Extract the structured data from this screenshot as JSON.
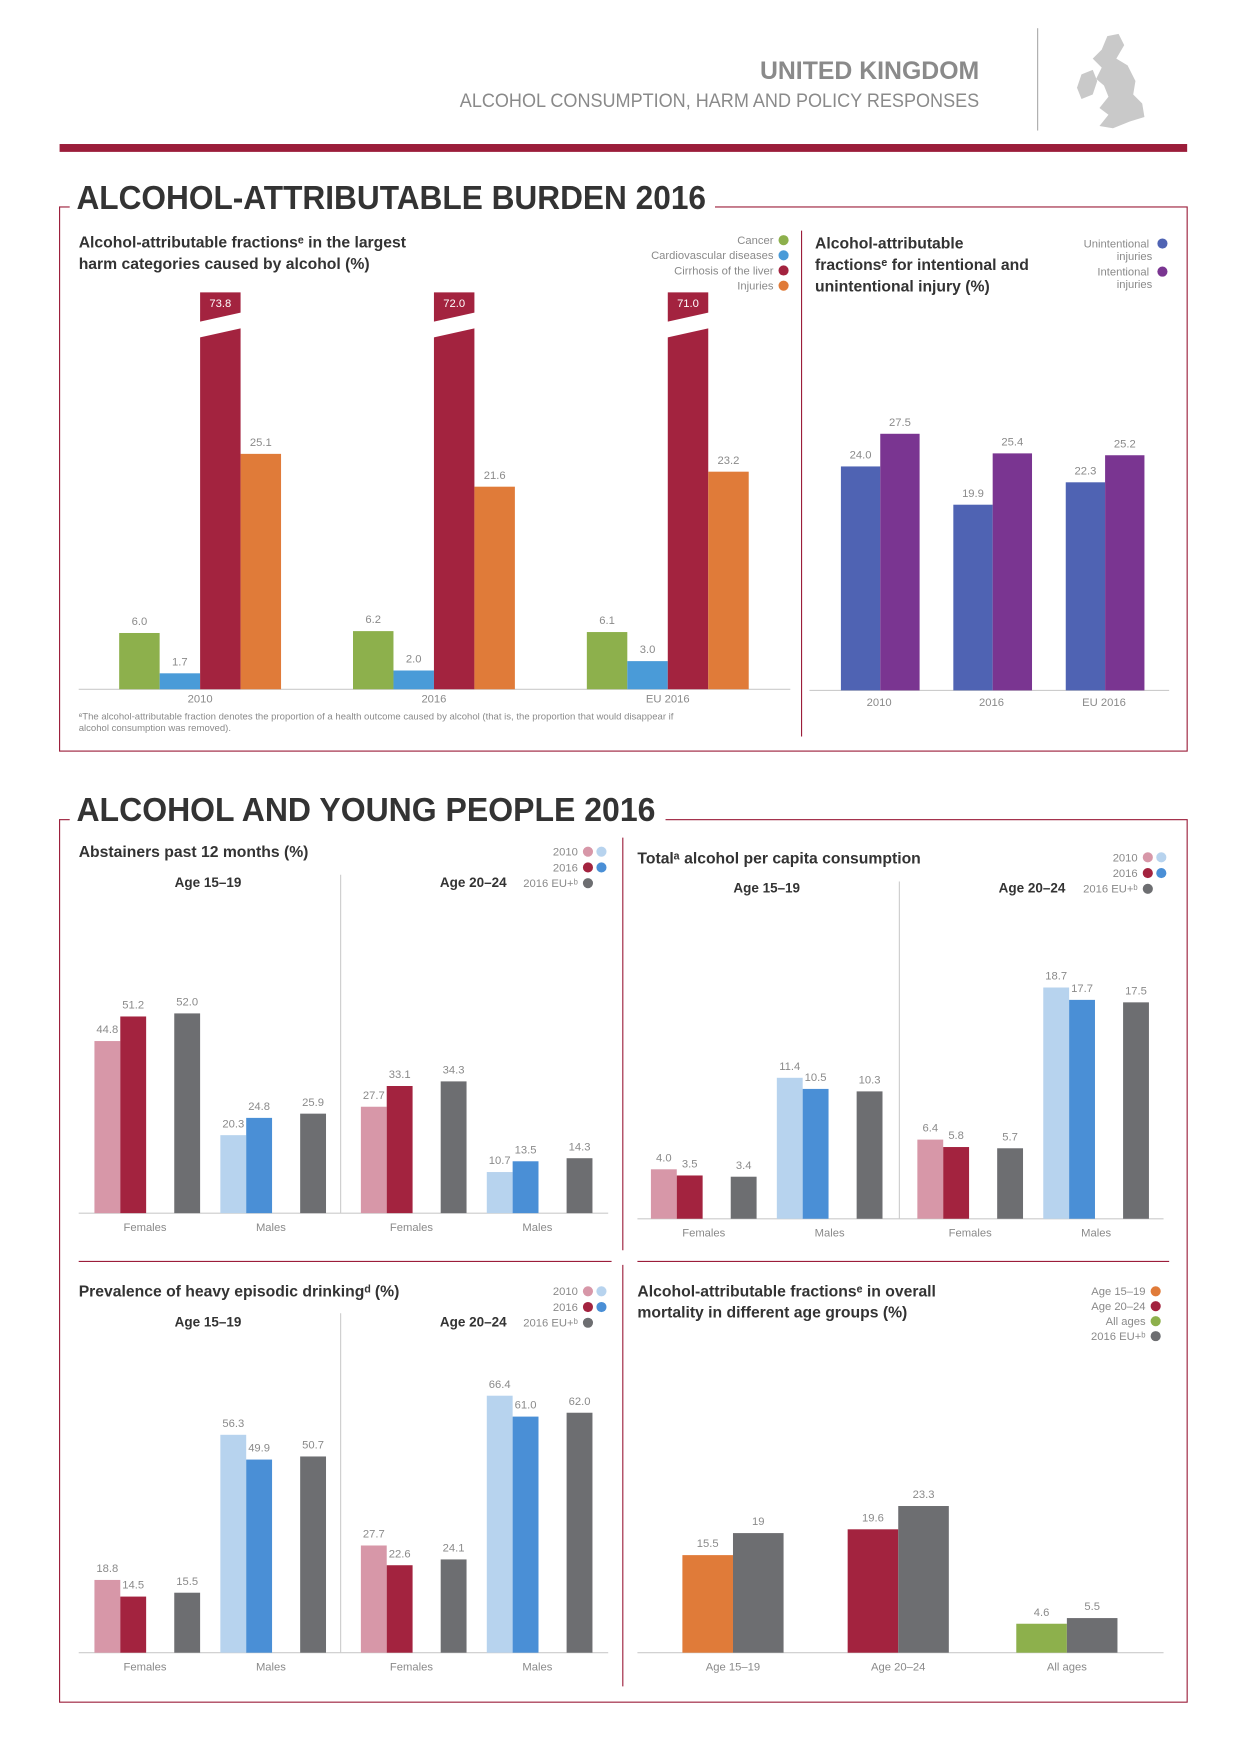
{
  "header": {
    "title": "UNITED KINGDOM",
    "subtitle": "ALCOHOL CONSUMPTION, HARM AND POLICY RESPONSES"
  },
  "sections": [
    {
      "title": "ALCOHOL-ATTRIBUTABLE BURDEN 2016"
    },
    {
      "title": "ALCOHOL AND YOUNG PEOPLE 2016"
    }
  ],
  "chart_data": [
    {
      "type": "bar",
      "title": "Alcohol-attributable fractionsᵉ in the largest harm categories caused by alcohol (%)",
      "categories": [
        "2010",
        "2016",
        "EU 2016"
      ],
      "ylim": [
        0,
        38
      ],
      "series": [
        {
          "name": "Cancer",
          "color": "#8db04c",
          "values": [
            6.0,
            6.2,
            6.1
          ],
          "value_labels": [
            "6.0",
            "6.2",
            "6.1"
          ]
        },
        {
          "name": "Cardiovascular diseases",
          "color": "#4a9bd8",
          "values": [
            1.7,
            2.0,
            3.0
          ],
          "value_labels": [
            "1.7",
            "2.0",
            "3.0"
          ]
        },
        {
          "name": "Cirrhosis of the liver",
          "color": "#a3233f",
          "values": [
            73.8,
            72.0,
            71.0
          ],
          "value_labels": [
            "73.8",
            "72.0",
            "71.0"
          ]
        },
        {
          "name": "Injuries",
          "color": "#e07b39",
          "values": [
            25.1,
            21.6,
            23.2
          ],
          "value_labels": [
            "25.1",
            "21.6",
            "23.2"
          ]
        }
      ],
      "note": "ᵉThe alcohol-attributable fraction denotes the proportion of a health outcome caused by alcohol (that is, the proportion that would disappear if alcohol consumption was removed)."
    },
    {
      "type": "bar",
      "title": "Alcohol-attributable fractionsᵉ for intentional and unintentional injury (%)",
      "categories": [
        "2010",
        "2016",
        "EU 2016"
      ],
      "ylim": [
        0,
        30
      ],
      "series": [
        {
          "name": "Unintentional injuries",
          "color": "#4f63b3",
          "values": [
            24.0,
            19.9,
            22.3
          ],
          "value_labels": [
            "24.0",
            "19.9",
            "22.3"
          ]
        },
        {
          "name": "Intentional injuries",
          "color": "#7a3591",
          "values": [
            27.5,
            25.4,
            25.2
          ],
          "value_labels": [
            "27.5",
            "25.4",
            "25.2"
          ]
        }
      ]
    },
    {
      "type": "bar",
      "title": "Abstainers past 12 months (%)",
      "groups": [
        "Age 15–19",
        "Age 20–24"
      ],
      "categories": [
        "Females",
        "Males",
        "Females",
        "Males"
      ],
      "ylim": [
        0,
        60
      ],
      "series": [
        {
          "name": "2010",
          "colors": [
            "#d797a8",
            "#b7d3ee",
            "#d797a8",
            "#b7d3ee"
          ],
          "values": [
            44.8,
            20.3,
            27.7,
            10.7
          ]
        },
        {
          "name": "2016",
          "colors": [
            "#a3233f",
            "#4a8fd6",
            "#a3233f",
            "#4a8fd6"
          ],
          "values": [
            51.2,
            24.8,
            33.1,
            13.5
          ]
        },
        {
          "name": "2016 EU+ᵇ",
          "color": "#6d6e71",
          "values": [
            52.0,
            25.9,
            34.3,
            14.3
          ],
          "value_labels": [
            "52.0",
            "25.9",
            "34.3",
            "14.3"
          ]
        }
      ]
    },
    {
      "type": "bar",
      "title": "Totalᵃ alcohol per capita consumption",
      "groups": [
        "Age 15–19",
        "Age 20–24"
      ],
      "categories": [
        "Females",
        "Males",
        "Females",
        "Males"
      ],
      "ylim": [
        0,
        20
      ],
      "series": [
        {
          "name": "2010",
          "colors": [
            "#d797a8",
            "#b7d3ee",
            "#d797a8",
            "#b7d3ee"
          ],
          "values": [
            4.0,
            11.4,
            6.4,
            18.7
          ],
          "value_labels": [
            "4.0",
            "11.4",
            "6.4",
            "18.7"
          ]
        },
        {
          "name": "2016",
          "colors": [
            "#a3233f",
            "#4a8fd6",
            "#a3233f",
            "#4a8fd6"
          ],
          "values": [
            3.5,
            10.5,
            5.8,
            17.7
          ]
        },
        {
          "name": "2016 EU+ᵇ",
          "color": "#6d6e71",
          "values": [
            3.4,
            10.3,
            5.7,
            17.5
          ]
        }
      ]
    },
    {
      "type": "bar",
      "title": "Prevalence of heavy episodic drinkingᵈ (%)",
      "groups": [
        "Age 15–19",
        "Age 20–24"
      ],
      "categories": [
        "Females",
        "Males",
        "Females",
        "Males"
      ],
      "ylim": [
        0,
        70
      ],
      "series": [
        {
          "name": "2010",
          "colors": [
            "#d797a8",
            "#b7d3ee",
            "#d797a8",
            "#b7d3ee"
          ],
          "values": [
            18.8,
            56.3,
            27.7,
            66.4
          ]
        },
        {
          "name": "2016",
          "colors": [
            "#a3233f",
            "#4a8fd6",
            "#a3233f",
            "#4a8fd6"
          ],
          "values": [
            14.5,
            49.9,
            22.6,
            61.0
          ],
          "value_labels": [
            "14.5",
            "49.9",
            "22.6",
            "61.0"
          ]
        },
        {
          "name": "2016 EU+ᵇ",
          "color": "#6d6e71",
          "values": [
            15.5,
            50.7,
            24.1,
            62.0
          ],
          "value_labels": [
            "15.5",
            "50.7",
            "24.1",
            "62.0"
          ]
        }
      ]
    },
    {
      "type": "bar",
      "title": "Alcohol-attributable fractionsᵉ in overall mortality in different age groups (%)",
      "categories": [
        "Age 15–19",
        "Age 20–24",
        "All ages"
      ],
      "category_colors": [
        "#e07b39",
        "#a3233f",
        "#8db04c"
      ],
      "ylim": [
        0,
        40
      ],
      "series": [
        {
          "values": [
            15.5,
            19.6,
            4.6
          ]
        },
        {
          "name": "2016 EU+ᵇ",
          "color": "#6d6e71",
          "values": [
            19.0,
            23.3,
            5.5
          ]
        }
      ]
    }
  ]
}
